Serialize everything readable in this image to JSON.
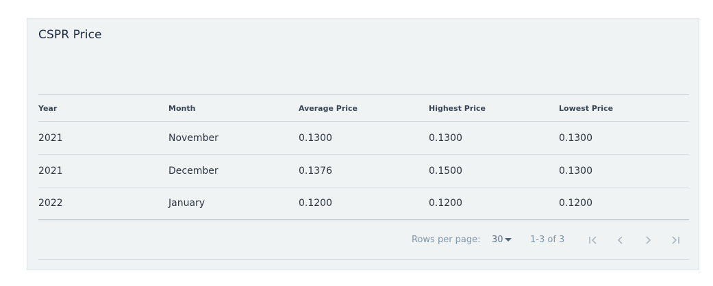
{
  "card": {
    "title": "CSPR Price"
  },
  "table": {
    "headers": [
      "Year",
      "Month",
      "Average Price",
      "Highest Price",
      "Lowest Price"
    ],
    "rows": [
      [
        "2021",
        "November",
        "0.1300",
        "0.1300",
        "0.1300"
      ],
      [
        "2021",
        "December",
        "0.1376",
        "0.1500",
        "0.1300"
      ],
      [
        "2022",
        "January",
        "0.1200",
        "0.1200",
        "0.1200"
      ]
    ]
  },
  "pagination": {
    "rows_per_page_label": "Rows per page:",
    "rows_per_page_value": "30",
    "range_text": "1-3 of 3"
  },
  "colors": {
    "card_background": "#f0f3f4",
    "title": "#1b2a44",
    "pager_text": "#7e95a8",
    "pager_icon": "#aab6c0"
  },
  "icons": {
    "first_page": "first-page-icon",
    "prev_page": "chevron-left-icon",
    "next_page": "chevron-right-icon",
    "last_page": "last-page-icon",
    "dropdown": "caret-down-icon"
  }
}
